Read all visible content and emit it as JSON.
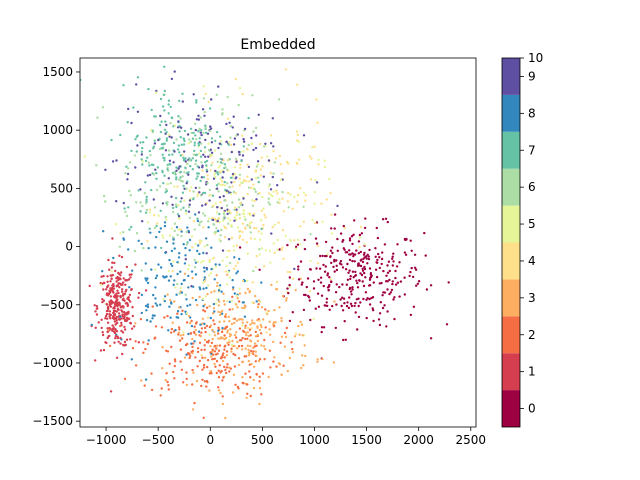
{
  "chart_data": {
    "type": "scatter",
    "title": "Embedded",
    "xlabel": "",
    "ylabel": "",
    "xlim": [
      -1250,
      2550
    ],
    "ylim": [
      -1550,
      1620
    ],
    "x_ticks": [
      -1000,
      -500,
      0,
      500,
      1000,
      1500,
      2000,
      2500
    ],
    "y_ticks": [
      -1500,
      -1000,
      -500,
      0,
      500,
      1000,
      1500
    ],
    "x_tick_labels": [
      "−1000",
      "−500",
      "0",
      "500",
      "1000",
      "1500",
      "2000",
      "2500"
    ],
    "y_tick_labels": [
      "−1500",
      "−1000",
      "−500",
      "0",
      "500",
      "1000",
      "1500"
    ],
    "grid": false,
    "colormap": "Spectral",
    "colorbar": {
      "range": [
        0,
        10
      ],
      "end_label": "10",
      "entries": [
        {
          "label": "0",
          "color": "#9e0142"
        },
        {
          "label": "1",
          "color": "#d53e4f"
        },
        {
          "label": "2",
          "color": "#f46d43"
        },
        {
          "label": "3",
          "color": "#fdae61"
        },
        {
          "label": "4",
          "color": "#fee08b"
        },
        {
          "label": "5",
          "color": "#e6f598"
        },
        {
          "label": "6",
          "color": "#abdda4"
        },
        {
          "label": "7",
          "color": "#66c2a5"
        },
        {
          "label": "8",
          "color": "#3288bd"
        },
        {
          "label": "9",
          "color": "#5e4fa2"
        }
      ]
    },
    "clusters": [
      {
        "label": "0",
        "center": [
          1400,
          -250
        ],
        "spread": [
          320,
          210
        ],
        "count": 330
      },
      {
        "label": "1",
        "center": [
          -900,
          -520
        ],
        "spread": [
          90,
          180
        ],
        "count": 300
      },
      {
        "label": "2",
        "center": [
          0,
          -900
        ],
        "spread": [
          330,
          200
        ],
        "count": 240
      },
      {
        "label": "3",
        "center": [
          300,
          -750
        ],
        "spread": [
          340,
          230
        ],
        "count": 240
      },
      {
        "label": "4",
        "center": [
          400,
          300
        ],
        "spread": [
          380,
          420
        ],
        "count": 200
      },
      {
        "label": "5",
        "center": [
          150,
          200
        ],
        "spread": [
          450,
          450
        ],
        "count": 200
      },
      {
        "label": "6",
        "center": [
          -100,
          500
        ],
        "spread": [
          380,
          380
        ],
        "count": 200
      },
      {
        "label": "7",
        "center": [
          -300,
          800
        ],
        "spread": [
          280,
          300
        ],
        "count": 220
      },
      {
        "label": "8",
        "center": [
          -300,
          -300
        ],
        "spread": [
          300,
          280
        ],
        "count": 180
      },
      {
        "label": "9",
        "center": [
          -100,
          700
        ],
        "spread": [
          400,
          350
        ],
        "count": 180
      }
    ]
  }
}
